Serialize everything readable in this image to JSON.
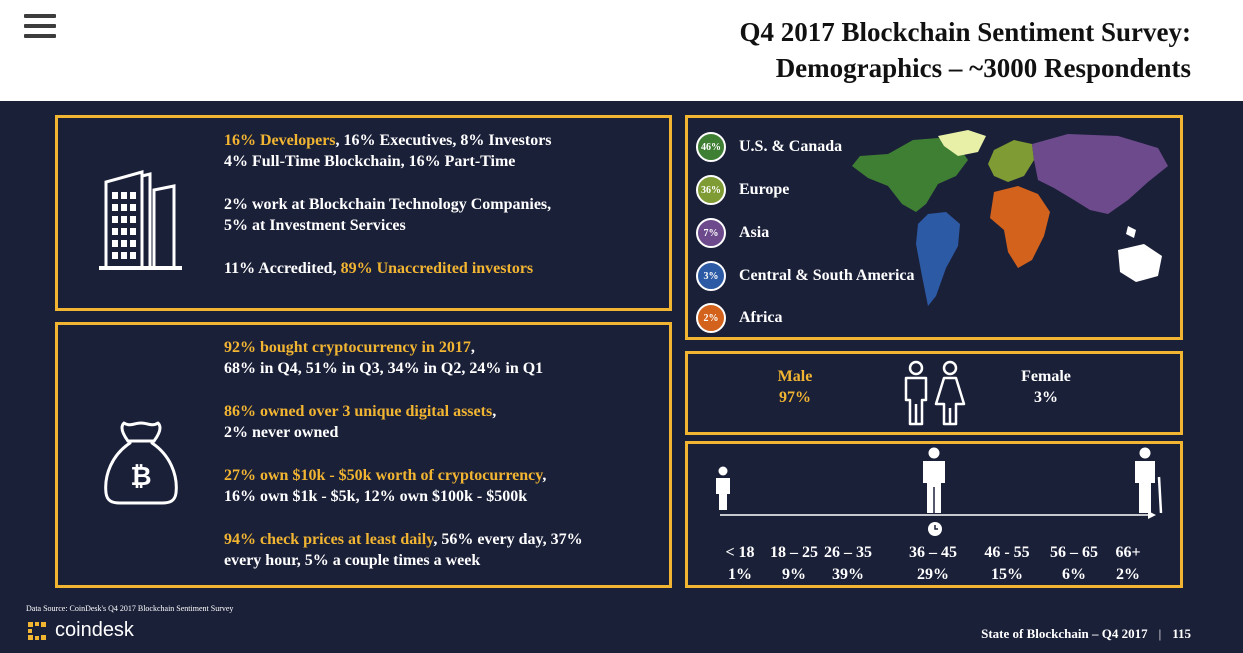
{
  "header": {
    "title_line1": "Q4 2017 Blockchain Sentiment Survey:",
    "title_line2": "Demographics – ~3000 Respondents"
  },
  "roles": {
    "line1_highlight": "16% Developers",
    "line1_rest": ", 16% Executives, 8% Investors",
    "line2": "4% Full-Time Blockchain, 16% Part-Time",
    "line3": "2% work at Blockchain Technology Companies,",
    "line4": "5% at Investment Services",
    "line5_start": "11% Accredited, ",
    "line5_highlight": "89% Unaccredited investors"
  },
  "crypto": {
    "p1_highlight": "92% bought cryptocurrency in 2017",
    "p1_rest": ",",
    "p1_line2": "68% in Q4, 51% in Q3, 34% in Q2, 24% in Q1",
    "p2_highlight": "86% owned over 3 unique digital assets",
    "p2_rest": ",",
    "p2_line2": "2% never owned",
    "p3_highlight": "27% own $10k - $50k worth of cryptocurrency",
    "p3_rest": ",",
    "p3_line2": "16% own $1k - $5k, 12% own $100k - $500k",
    "p4_highlight": "94% check prices at least daily",
    "p4_rest": ", 56% every day, 37%",
    "p4_line2": "every hour, 5% a couple times a week"
  },
  "regions": [
    {
      "pct": "46%",
      "label": "U.S. & Canada",
      "color": "#3f7f34",
      "highlight": true
    },
    {
      "pct": "36%",
      "label": "Europe",
      "color": "#7f9b33",
      "highlight": true
    },
    {
      "pct": "7%",
      "label": "Asia",
      "color": "#6d4a8c",
      "highlight": false
    },
    {
      "pct": "3%",
      "label": "Central & South America",
      "color": "#2d5aa5",
      "highlight": false
    },
    {
      "pct": "2%",
      "label": "Africa",
      "color": "#d3621c",
      "highlight": false
    }
  ],
  "gender": {
    "male_label": "Male",
    "male_pct": "97%",
    "female_label": "Female",
    "female_pct": "3%"
  },
  "ages": [
    {
      "range": "< 18",
      "pct": "1%",
      "highlight": false
    },
    {
      "range": "18 – 25",
      "pct": "9%",
      "highlight": false
    },
    {
      "range": "26 – 35",
      "pct": "39%",
      "highlight": true
    },
    {
      "range": "36 – 45",
      "pct": "29%",
      "highlight": true
    },
    {
      "range": "46 - 55",
      "pct": "15%",
      "highlight": true
    },
    {
      "range": "56 – 65",
      "pct": "6%",
      "highlight": false
    },
    {
      "range": "66+",
      "pct": "2%",
      "highlight": false
    }
  ],
  "footer": {
    "source": "Data Source: CoinDesk's Q4 2017 Blockchain Sentiment Survey",
    "logo_text": "coindesk",
    "report": "State of Blockchain – Q4 2017",
    "separator": "|",
    "page": "115"
  },
  "colors": {
    "background": "#1b2039",
    "accent": "#f2b531"
  }
}
